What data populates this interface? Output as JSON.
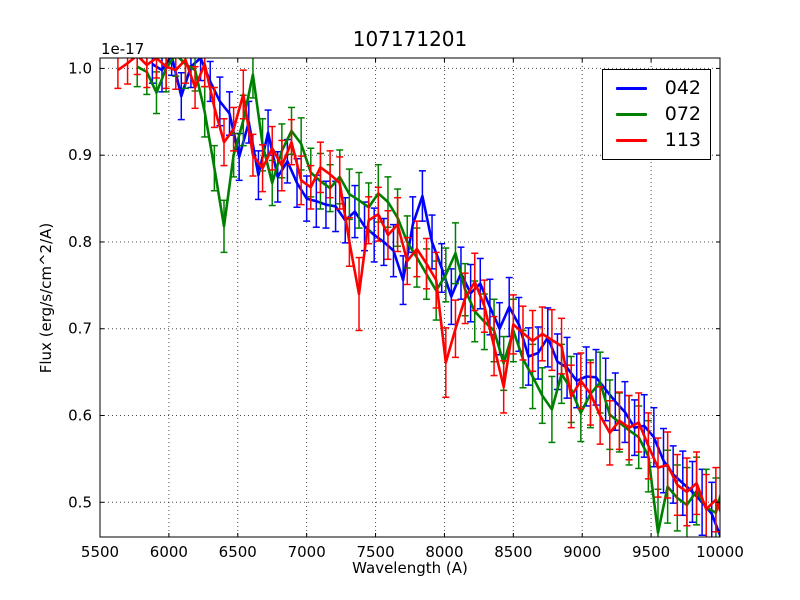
{
  "chart_data": {
    "type": "line",
    "subtype": "spectrum-with-errorbars",
    "title": "107171201",
    "xlabel": "Wavelength (A)",
    "ylabel": "Flux (erg/s/cm^2/A)",
    "offset_text": "1e-17",
    "xlim": [
      5500,
      10000
    ],
    "ylim": [
      0.46,
      1.012
    ],
    "xticks": [
      5500,
      6000,
      6500,
      7000,
      7500,
      8000,
      8500,
      9000,
      9500,
      10000
    ],
    "yticks": [
      0.5,
      0.6,
      0.7,
      0.8,
      0.9,
      1.0
    ],
    "grid": true,
    "grid_style": "dotted",
    "legend_position": "upper right",
    "colors": {
      "background": "#ffffff",
      "axes": "#000000",
      "text": "#000000"
    },
    "series": [
      {
        "name": "042",
        "color": "#0000ff",
        "x": [
          5880,
          5950,
          6020,
          6090,
          6160,
          6230,
          6300,
          6370,
          6440,
          6510,
          6580,
          6650,
          6720,
          6790,
          6860,
          6930,
          7000,
          7070,
          7140,
          7210,
          7280,
          7350,
          7420,
          7490,
          7560,
          7630,
          7700,
          7770,
          7840,
          7910,
          7980,
          8050,
          8120,
          8190,
          8260,
          8330,
          8400,
          8470,
          8540,
          8610,
          8680,
          8750,
          8820,
          8890,
          8960,
          9030,
          9100,
          9170,
          9240,
          9310,
          9380,
          9450,
          9520,
          9590,
          9660,
          9730,
          9800,
          9870,
          9940,
          10010
        ],
        "y": [
          1.005,
          0.998,
          1.015,
          0.968,
          1.002,
          1.012,
          0.985,
          0.962,
          0.948,
          0.898,
          0.938,
          0.877,
          0.926,
          0.875,
          0.893,
          0.868,
          0.85,
          0.847,
          0.843,
          0.841,
          0.825,
          0.835,
          0.818,
          0.808,
          0.8,
          0.79,
          0.756,
          0.82,
          0.853,
          0.8,
          0.77,
          0.737,
          0.764,
          0.741,
          0.752,
          0.725,
          0.7,
          0.725,
          0.705,
          0.668,
          0.672,
          0.69,
          0.662,
          0.655,
          0.64,
          0.645,
          0.644,
          0.63,
          0.616,
          0.604,
          0.586,
          0.588,
          0.575,
          0.548,
          0.532,
          0.522,
          0.512,
          0.5,
          0.487,
          0.458
        ],
        "yerr": [
          0.022,
          0.025,
          0.023,
          0.027,
          0.024,
          0.026,
          0.023,
          0.028,
          0.025,
          0.027,
          0.024,
          0.028,
          0.026,
          0.029,
          0.025,
          0.028,
          0.026,
          0.03,
          0.027,
          0.029,
          0.026,
          0.03,
          0.028,
          0.031,
          0.027,
          0.03,
          0.028,
          0.032,
          0.029,
          0.031,
          0.028,
          0.032,
          0.03,
          0.033,
          0.029,
          0.032,
          0.03,
          0.034,
          0.031,
          0.033,
          0.03,
          0.034,
          0.032,
          0.035,
          0.031,
          0.034,
          0.032,
          0.036,
          0.033,
          0.035,
          0.032,
          0.036,
          0.034,
          0.037,
          0.033,
          0.037,
          0.035,
          0.038,
          0.036,
          0.04
        ]
      },
      {
        "name": "072",
        "color": "#008000",
        "x": [
          5770,
          5840,
          5910,
          5980,
          6050,
          6120,
          6190,
          6260,
          6330,
          6400,
          6470,
          6540,
          6610,
          6680,
          6750,
          6820,
          6890,
          6960,
          7030,
          7100,
          7170,
          7240,
          7310,
          7380,
          7450,
          7520,
          7590,
          7660,
          7730,
          7800,
          7870,
          7940,
          8010,
          8080,
          8150,
          8220,
          8290,
          8360,
          8430,
          8500,
          8570,
          8640,
          8710,
          8780,
          8850,
          8920,
          8990,
          9060,
          9130,
          9200,
          9270,
          9340,
          9410,
          9480,
          9550,
          9620,
          9690,
          9760,
          9830,
          9900,
          9970,
          10040
        ],
        "y": [
          1.002,
          0.996,
          0.972,
          1.0,
          1.016,
          1.005,
          0.998,
          0.95,
          0.885,
          0.818,
          0.9,
          0.94,
          0.993,
          0.912,
          0.868,
          0.905,
          0.928,
          0.913,
          0.88,
          0.87,
          0.862,
          0.875,
          0.855,
          0.848,
          0.84,
          0.856,
          0.846,
          0.828,
          0.8,
          0.782,
          0.763,
          0.744,
          0.762,
          0.787,
          0.745,
          0.72,
          0.708,
          0.698,
          0.66,
          0.698,
          0.665,
          0.645,
          0.623,
          0.607,
          0.648,
          0.63,
          0.603,
          0.625,
          0.638,
          0.601,
          0.592,
          0.583,
          0.575,
          0.553,
          0.465,
          0.518,
          0.505,
          0.497,
          0.513,
          0.494,
          0.488,
          0.53
        ],
        "yerr": [
          0.023,
          0.026,
          0.024,
          0.027,
          0.025,
          0.028,
          0.024,
          0.029,
          0.026,
          0.03,
          0.025,
          0.029,
          0.027,
          0.03,
          0.026,
          0.031,
          0.027,
          0.03,
          0.028,
          0.032,
          0.027,
          0.031,
          0.029,
          0.032,
          0.028,
          0.033,
          0.029,
          0.033,
          0.03,
          0.034,
          0.029,
          0.034,
          0.031,
          0.035,
          0.03,
          0.035,
          0.032,
          0.036,
          0.031,
          0.036,
          0.033,
          0.037,
          0.032,
          0.038,
          0.034,
          0.038,
          0.033,
          0.039,
          0.035,
          0.04,
          0.034,
          0.04,
          0.036,
          0.041,
          0.05,
          0.042,
          0.038,
          0.043,
          0.039,
          0.044,
          0.04,
          0.045
        ]
      },
      {
        "name": "113",
        "color": "#ff0000",
        "x": [
          5630,
          5700,
          5770,
          5840,
          5910,
          5980,
          6050,
          6120,
          6190,
          6260,
          6330,
          6400,
          6470,
          6540,
          6610,
          6680,
          6750,
          6820,
          6890,
          6960,
          7030,
          7100,
          7170,
          7240,
          7310,
          7380,
          7450,
          7520,
          7590,
          7660,
          7730,
          7800,
          7870,
          7940,
          8010,
          8080,
          8150,
          8220,
          8290,
          8360,
          8430,
          8500,
          8570,
          8640,
          8710,
          8780,
          8850,
          8920,
          8990,
          9060,
          9130,
          9200,
          9270,
          9340,
          9410,
          9480,
          9550,
          9620,
          9690,
          9760,
          9830,
          9900,
          9970,
          10040
        ],
        "y": [
          0.998,
          1.006,
          1.015,
          1.004,
          1.012,
          1.002,
          0.998,
          1.01,
          0.978,
          1.005,
          0.955,
          0.915,
          0.93,
          0.97,
          0.9,
          0.885,
          0.908,
          0.888,
          0.915,
          0.871,
          0.863,
          0.886,
          0.878,
          0.868,
          0.8,
          0.74,
          0.825,
          0.832,
          0.808,
          0.82,
          0.778,
          0.792,
          0.775,
          0.756,
          0.661,
          0.7,
          0.735,
          0.754,
          0.726,
          0.68,
          0.633,
          0.705,
          0.695,
          0.686,
          0.694,
          0.687,
          0.68,
          0.622,
          0.64,
          0.625,
          0.6,
          0.58,
          0.594,
          0.586,
          0.592,
          0.565,
          0.54,
          0.543,
          0.52,
          0.512,
          0.522,
          0.492,
          0.503,
          0.475
        ],
        "yerr": [
          0.021,
          0.024,
          0.022,
          0.026,
          0.023,
          0.025,
          0.022,
          0.027,
          0.024,
          0.026,
          0.023,
          0.027,
          0.025,
          0.028,
          0.024,
          0.027,
          0.025,
          0.029,
          0.026,
          0.028,
          0.025,
          0.029,
          0.027,
          0.03,
          0.028,
          0.042,
          0.027,
          0.031,
          0.028,
          0.031,
          0.027,
          0.032,
          0.029,
          0.032,
          0.04,
          0.033,
          0.029,
          0.033,
          0.03,
          0.034,
          0.03,
          0.034,
          0.031,
          0.035,
          0.031,
          0.035,
          0.032,
          0.036,
          0.032,
          0.036,
          0.033,
          0.037,
          0.033,
          0.037,
          0.034,
          0.038,
          0.034,
          0.038,
          0.035,
          0.039,
          0.036,
          0.04,
          0.037,
          0.041
        ]
      }
    ]
  }
}
